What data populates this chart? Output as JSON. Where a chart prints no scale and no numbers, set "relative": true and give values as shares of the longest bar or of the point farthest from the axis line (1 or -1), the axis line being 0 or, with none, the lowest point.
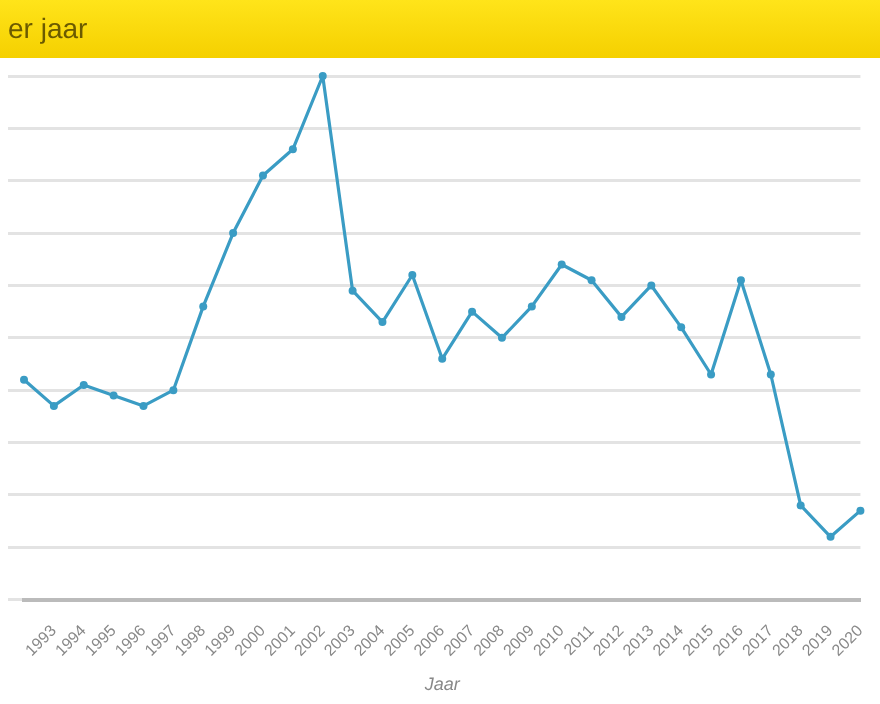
{
  "chart_data": {
    "type": "line",
    "title": "er jaar",
    "xlabel": "Jaar",
    "relative": true,
    "grid": "y",
    "legend": false,
    "marker": "circle",
    "line_style": "solid",
    "categories": [
      null,
      "1993",
      "1994",
      "1995",
      "1996",
      "1997",
      "1998",
      "1999",
      "2000",
      "2001",
      "2002",
      "2003",
      "2004",
      "2005",
      "2006",
      "2007",
      "2008",
      "2009",
      "2010",
      "2011",
      "2012",
      "2013",
      "2014",
      "2015",
      "2016",
      "2017",
      "2018",
      "2019",
      "2020"
    ],
    "series": [
      {
        "color": "#3a9cc4",
        "values": [
          0.42,
          0.37,
          0.41,
          0.39,
          0.37,
          0.4,
          0.56,
          0.7,
          0.81,
          0.86,
          1,
          0.59,
          0.53,
          0.62,
          0.46,
          0.55,
          0.5,
          0.56,
          0.64,
          0.61,
          0.54,
          0.6,
          0.52,
          0.43,
          0.61,
          0.43,
          0.18,
          0.12,
          0.17
        ]
      }
    ]
  }
}
